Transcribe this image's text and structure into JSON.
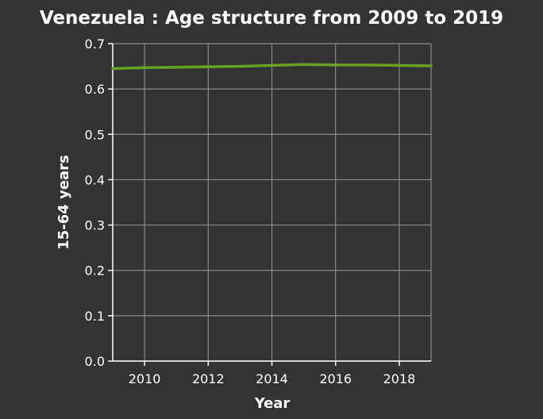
{
  "chart_data": {
    "type": "line",
    "title": "Venezuela : Age structure from 2009 to 2019",
    "xlabel": "Year",
    "ylabel": "15-64 years",
    "xlim": [
      2009,
      2019
    ],
    "ylim": [
      0,
      0.7
    ],
    "x_ticks": [
      2010,
      2012,
      2014,
      2016,
      2018
    ],
    "y_ticks": [
      "0.0",
      "0.1",
      "0.2",
      "0.3",
      "0.4",
      "0.5",
      "0.6",
      "0.7"
    ],
    "grid": true,
    "series": [
      {
        "color": "#6aa122",
        "x": [
          2009,
          2010,
          2011,
          2012,
          2013,
          2014,
          2015,
          2016,
          2017,
          2018,
          2019
        ],
        "values": [
          0.645,
          0.647,
          0.648,
          0.649,
          0.65,
          0.652,
          0.654,
          0.653,
          0.653,
          0.652,
          0.651
        ]
      }
    ]
  }
}
